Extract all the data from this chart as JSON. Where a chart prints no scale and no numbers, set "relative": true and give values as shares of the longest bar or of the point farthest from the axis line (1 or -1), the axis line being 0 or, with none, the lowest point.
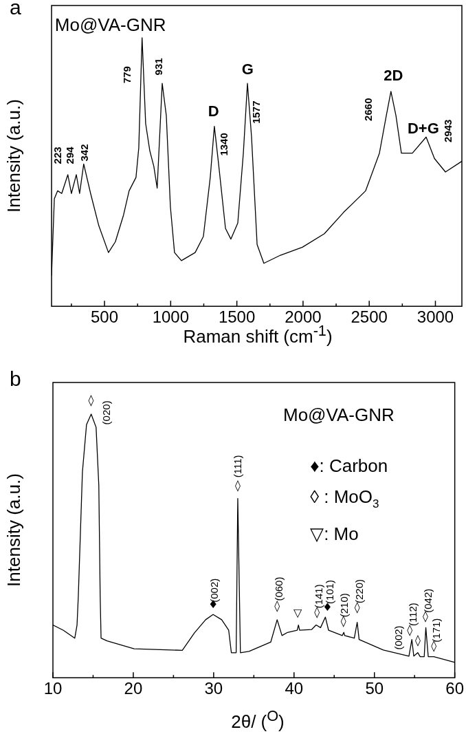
{
  "chart_data": [
    {
      "type": "line",
      "title": "a",
      "xlabel": "Raman shift (cm$^{-1}$)",
      "ylabel": "Intensity (a.u.)",
      "relative": true,
      "marker": "none",
      "xlim": [
        100,
        3200
      ],
      "xticks": [
        {
          "value": 250,
          "label": null
        },
        500,
        {
          "value": 750,
          "label": null
        },
        1000,
        {
          "value": 1250,
          "label": null
        },
        1500,
        {
          "value": 1750,
          "label": null
        },
        2000,
        {
          "value": 2250,
          "label": null
        },
        2500,
        {
          "value": 2750,
          "label": null
        },
        3000
      ],
      "series": [
        {
          "color": "#000000",
          "x": [
            100,
            121,
            146,
            177,
            223,
            250,
            287,
            312,
            343,
            395,
            457,
            530,
            582,
            644,
            686,
            738,
            759,
            784,
            811,
            842,
            873,
            898,
            936,
            967,
            998,
            1029,
            1081,
            1185,
            1247,
            1299,
            1330,
            1362,
            1414,
            1455,
            1507,
            1549,
            1580,
            1611,
            1653,
            1704,
            1829,
            1995,
            2161,
            2307,
            2473,
            2577,
            2629,
            2664,
            2702,
            2743,
            2826,
            2930,
            2993,
            3076,
            3200
          ],
          "values": [
            0.115,
            0.4,
            0.43,
            0.42,
            0.49,
            0.42,
            0.49,
            0.42,
            0.53,
            0.42,
            0.3,
            0.2,
            0.24,
            0.34,
            0.43,
            0.48,
            0.59,
            1.0,
            0.68,
            0.58,
            0.52,
            0.44,
            0.83,
            0.71,
            0.37,
            0.2,
            0.17,
            0.2,
            0.26,
            0.48,
            0.67,
            0.53,
            0.29,
            0.25,
            0.31,
            0.57,
            0.83,
            0.63,
            0.23,
            0.16,
            0.19,
            0.22,
            0.27,
            0.35,
            0.43,
            0.57,
            0.71,
            0.8,
            0.71,
            0.57,
            0.57,
            0.63,
            0.55,
            0.5,
            0.54
          ]
        }
      ],
      "annotations": [
        "Mo@VA-GNR",
        "223",
        "294",
        "342",
        "779",
        "931",
        "D",
        "1340",
        "G",
        "1577",
        "2660",
        "2D",
        "D+G",
        "2943"
      ]
    },
    {
      "type": "line",
      "title": "b",
      "xlabel": "2θ/ ($^{O}$)",
      "ylabel": "Intensity (a.u.)",
      "relative": true,
      "marker": "none",
      "xlim": [
        10,
        60
      ],
      "xticks": [
        10,
        {
          "value": 15,
          "label": null
        },
        20,
        {
          "value": 25,
          "label": null
        },
        30,
        {
          "value": 35,
          "label": null
        },
        40,
        {
          "value": 45,
          "label": null
        },
        50,
        {
          "value": 55,
          "label": null
        },
        60
      ],
      "series": [
        {
          "color": "#000000",
          "x": [
            10,
            11.3,
            12.72,
            13.0,
            13.16,
            13.67,
            14.18,
            14.76,
            15.37,
            15.71,
            15.88,
            15.99,
            16.73,
            20.1,
            26.1,
            27.6,
            29.0,
            29.93,
            31.0,
            31.87,
            32.2,
            32.8,
            33.0,
            33.33,
            34.4,
            37.1,
            37.9,
            38.5,
            39.2,
            40.4,
            40.55,
            40.7,
            42.2,
            42.75,
            43.3,
            43.9,
            44.3,
            46.0,
            46.2,
            46.3,
            47.5,
            47.86,
            48.1,
            51.1,
            54.3,
            54.66,
            54.9,
            55.4,
            55.7,
            56.2,
            56.4,
            56.7,
            57.4,
            60
          ],
          "values": [
            0.2,
            0.18,
            0.15,
            0.2,
            0.31,
            0.78,
            0.96,
            1.0,
            0.95,
            0.73,
            0.31,
            0.15,
            0.14,
            0.11,
            0.104,
            0.17,
            0.22,
            0.24,
            0.22,
            0.18,
            0.095,
            0.095,
            0.68,
            0.095,
            0.1,
            0.135,
            0.22,
            0.16,
            0.172,
            0.18,
            0.2,
            0.18,
            0.183,
            0.2,
            0.19,
            0.23,
            0.18,
            0.16,
            0.172,
            0.16,
            0.15,
            0.21,
            0.145,
            0.105,
            0.082,
            0.145,
            0.082,
            0.095,
            0.08,
            0.08,
            0.19,
            0.08,
            0.08,
            0.058
          ]
        }
      ],
      "annotations": [
        "Mo@VA-GNR",
        "♦: Carbon",
        "◊ : MoO$_{3}$",
        "▽: Mo",
        "◊",
        "(020)",
        "◊",
        "(111)",
        "♦",
        "(002)",
        "◊",
        "(060)",
        "▽",
        "◊",
        "(141)",
        "♦",
        "(101)",
        "◊",
        "(210)",
        "◊",
        "(220)",
        "(002)",
        "◊",
        "(112)",
        "◊",
        "◊",
        "(042)",
        "◊",
        "(171)"
      ]
    }
  ]
}
